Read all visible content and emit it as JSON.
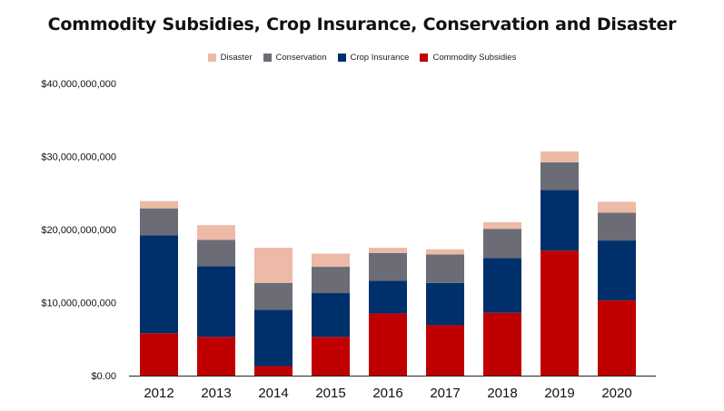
{
  "chart_data": {
    "type": "bar",
    "stacked": true,
    "title": "Commodity Subsidies, Crop Insurance, Conservation and Disaster",
    "xlabel": "",
    "ylabel": "",
    "ylim": [
      0,
      40000000000
    ],
    "yticks": [
      {
        "value": 0,
        "label": "$0.00"
      },
      {
        "value": 10000000000,
        "label": "$10,000,000,000"
      },
      {
        "value": 20000000000,
        "label": "$20,000,000,000"
      },
      {
        "value": 30000000000,
        "label": "$30,000,000,000"
      },
      {
        "value": 40000000000,
        "label": "$40,000,000,000"
      }
    ],
    "grid": false,
    "legend_position": "top-center",
    "legend_order": [
      "Disaster",
      "Conservation",
      "Crop Insurance",
      "Commodity Subsidies"
    ],
    "categories": [
      "2012",
      "2013",
      "2014",
      "2015",
      "2016",
      "2017",
      "2018",
      "2019",
      "2020"
    ],
    "series": [
      {
        "name": "Commodity Subsidies",
        "color": "#c00000",
        "values": [
          5800000000,
          5300000000,
          1300000000,
          5300000000,
          8500000000,
          6900000000,
          8600000000,
          17100000000,
          10300000000
        ]
      },
      {
        "name": "Crop Insurance",
        "color": "#00306b",
        "values": [
          13400000000,
          9700000000,
          7700000000,
          6000000000,
          4500000000,
          5800000000,
          7500000000,
          8300000000,
          8200000000
        ]
      },
      {
        "name": "Conservation",
        "color": "#6c6c76",
        "values": [
          3700000000,
          3600000000,
          3700000000,
          3600000000,
          3800000000,
          3900000000,
          4000000000,
          3800000000,
          3800000000
        ]
      },
      {
        "name": "Disaster",
        "color": "#ecbaa6",
        "values": [
          1000000000,
          2000000000,
          4800000000,
          1800000000,
          700000000,
          700000000,
          900000000,
          1500000000,
          1500000000
        ]
      }
    ]
  }
}
